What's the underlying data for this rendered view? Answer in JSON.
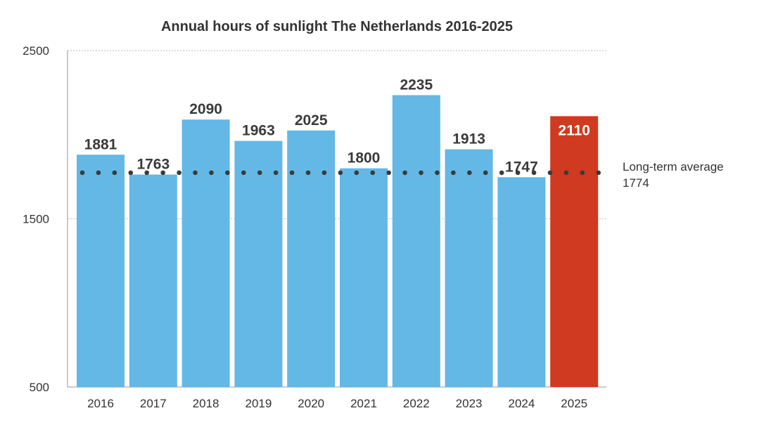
{
  "chart_data": {
    "type": "bar",
    "title": "Annual hours of sunlight The Netherlands 2016-2025",
    "categories": [
      "2016",
      "2017",
      "2018",
      "2019",
      "2020",
      "2021",
      "2022",
      "2023",
      "2024",
      "2025"
    ],
    "values": [
      1881,
      1763,
      2090,
      1963,
      2025,
      1800,
      2235,
      1913,
      1747,
      2110
    ],
    "ylim": [
      500,
      2500
    ],
    "yticks": [
      "500",
      "1500",
      "2500"
    ],
    "grid": "dotted horizontal at 1500 and 2500",
    "reference_line": {
      "label": "Long-term average",
      "value": 1774,
      "value_label": "1774"
    },
    "colors": {
      "bar": "#63b8e6",
      "highlight": "#cf3a20",
      "highlight_category": "2025",
      "label": "#3a3a3a",
      "dots": "#3a3a3a"
    }
  }
}
